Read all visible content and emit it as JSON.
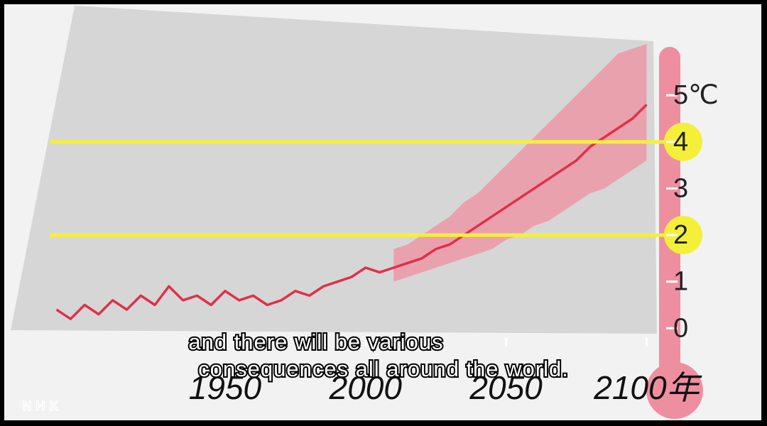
{
  "chart_data": {
    "type": "line",
    "xlim": [
      1880,
      2110
    ],
    "ylim": [
      -0.3,
      6.1
    ],
    "xticks": [
      1950,
      2000,
      2050,
      {
        "value": 2100,
        "label": "2100年"
      }
    ],
    "yticks": [
      0,
      1,
      2,
      3,
      4,
      {
        "value": 5,
        "label": "5℃"
      }
    ],
    "highlighted_ticks": [
      2,
      4
    ],
    "highlight_color": "#f4f03a",
    "series": [
      {
        "color": "#e0304a",
        "x": [
          1890,
          1895,
          1900,
          1905,
          1910,
          1915,
          1920,
          1925,
          1930,
          1935,
          1940,
          1945,
          1950,
          1955,
          1960,
          1965,
          1970,
          1975,
          1980,
          1985,
          1990,
          1995,
          2000,
          2005,
          2010
        ],
        "values": [
          0.4,
          0.2,
          0.5,
          0.3,
          0.6,
          0.4,
          0.7,
          0.5,
          0.9,
          0.6,
          0.7,
          0.5,
          0.8,
          0.6,
          0.7,
          0.5,
          0.6,
          0.8,
          0.7,
          0.9,
          1.0,
          1.1,
          1.3,
          1.2,
          1.3
        ]
      },
      {
        "color": "#e0304a",
        "x": [
          2010,
          2015,
          2020,
          2025,
          2030,
          2035,
          2040,
          2045,
          2050,
          2055,
          2060,
          2065,
          2070,
          2075,
          2080,
          2085,
          2090,
          2095,
          2100
        ],
        "values": [
          1.3,
          1.4,
          1.5,
          1.7,
          1.8,
          2.0,
          2.2,
          2.4,
          2.6,
          2.8,
          3.0,
          3.2,
          3.4,
          3.6,
          3.9,
          4.1,
          4.3,
          4.5,
          4.8
        ]
      }
    ],
    "band": {
      "color": "#f08fa0",
      "x": [
        2010,
        2015,
        2020,
        2025,
        2030,
        2035,
        2040,
        2045,
        2050,
        2055,
        2060,
        2065,
        2070,
        2075,
        2080,
        2085,
        2090,
        2095,
        2100
      ],
      "lower": [
        1.0,
        1.1,
        1.2,
        1.3,
        1.4,
        1.5,
        1.6,
        1.7,
        1.9,
        2.0,
        2.2,
        2.3,
        2.5,
        2.7,
        2.9,
        3.0,
        3.2,
        3.4,
        3.6
      ],
      "upper": [
        1.7,
        1.8,
        2.0,
        2.2,
        2.4,
        2.7,
        2.9,
        3.2,
        3.5,
        3.8,
        4.1,
        4.4,
        4.7,
        5.0,
        5.3,
        5.6,
        5.9,
        6.0,
        6.1
      ]
    },
    "subtitle": [
      "and there will be various",
      "consequences all around the world."
    ],
    "logo": "NHK"
  }
}
